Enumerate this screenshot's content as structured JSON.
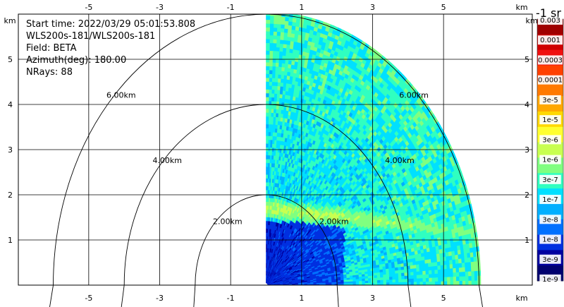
{
  "info": {
    "start_time": "Start time: 2022/03/29 05:01:53.808",
    "instrument": "WLS200s-181/WLS200s-181",
    "field": "Field: BETA",
    "azimuth": "Azimuth(deg): 180.00",
    "nrays": "NRays: 88"
  },
  "colorbar": {
    "title": "-1 sr",
    "labels": [
      "0.003",
      "0.001",
      "0.0003",
      "0.0001",
      "3e-5",
      "1e-5",
      "3e-6",
      "1e-6",
      "3e-7",
      "1e-7",
      "3e-8",
      "1e-8",
      "3e-9",
      "1e-9"
    ],
    "colors": [
      "#a00000",
      "#d00000",
      "#f01010",
      "#ff4000",
      "#ff7a00",
      "#ffa800",
      "#ffd800",
      "#ffff30",
      "#c8ff50",
      "#80ff80",
      "#30ffc0",
      "#00e0ff",
      "#00b0ff",
      "#0070ff",
      "#0030e0",
      "#0000a0",
      "#000070"
    ]
  },
  "chart_data": {
    "type": "heatmap",
    "title": "",
    "axis_unit_label": "km",
    "x_ticks": [
      -5,
      -3,
      -1,
      1,
      3,
      5
    ],
    "y_ticks": [
      1,
      2,
      3,
      4,
      5
    ],
    "xlim": [
      -6.0,
      6.0
    ],
    "ylim": [
      0.0,
      6.0
    ],
    "range_rings_km": [
      2,
      4,
      6
    ],
    "range_ring_labels": [
      "2.00km",
      "4.00km",
      "6.00km"
    ],
    "scan": {
      "azimuth_deg": 180.0,
      "nrays": 88,
      "max_range_km": 6.0,
      "min_x_km": 0.0
    },
    "features": {
      "aerosol_layer_height_km": 1.7,
      "aerosol_layer_descr": "enhanced backscatter band near 1.6-1.9 km"
    }
  }
}
